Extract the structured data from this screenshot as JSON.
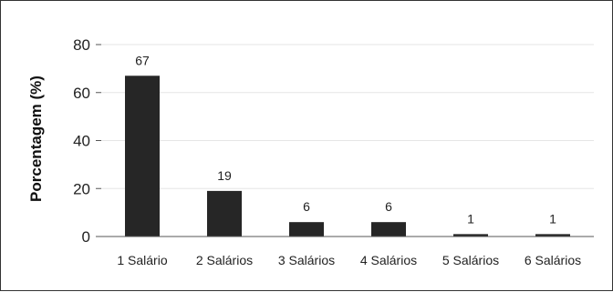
{
  "chart_data": {
    "type": "bar",
    "categories": [
      "1 Salário",
      "2 Salários",
      "3 Salários",
      "4 Salários",
      "5 Salários",
      "6 Salários"
    ],
    "values": [
      67,
      19,
      6,
      6,
      1,
      1
    ],
    "data_labels": [
      "67",
      "19",
      "6",
      "6",
      "1",
      "1"
    ],
    "title": "",
    "xlabel": "",
    "ylabel": "Porcentagem (%)",
    "ylim": [
      0,
      80
    ],
    "yticks": [
      0,
      20,
      40,
      60,
      80
    ],
    "ytick_labels": [
      "0",
      "20",
      "40",
      "60",
      "80"
    ],
    "grid": true,
    "legend": "none",
    "colors": {
      "bar": "#262626",
      "grid": "#e6e6e6",
      "axis": "#555555"
    }
  }
}
